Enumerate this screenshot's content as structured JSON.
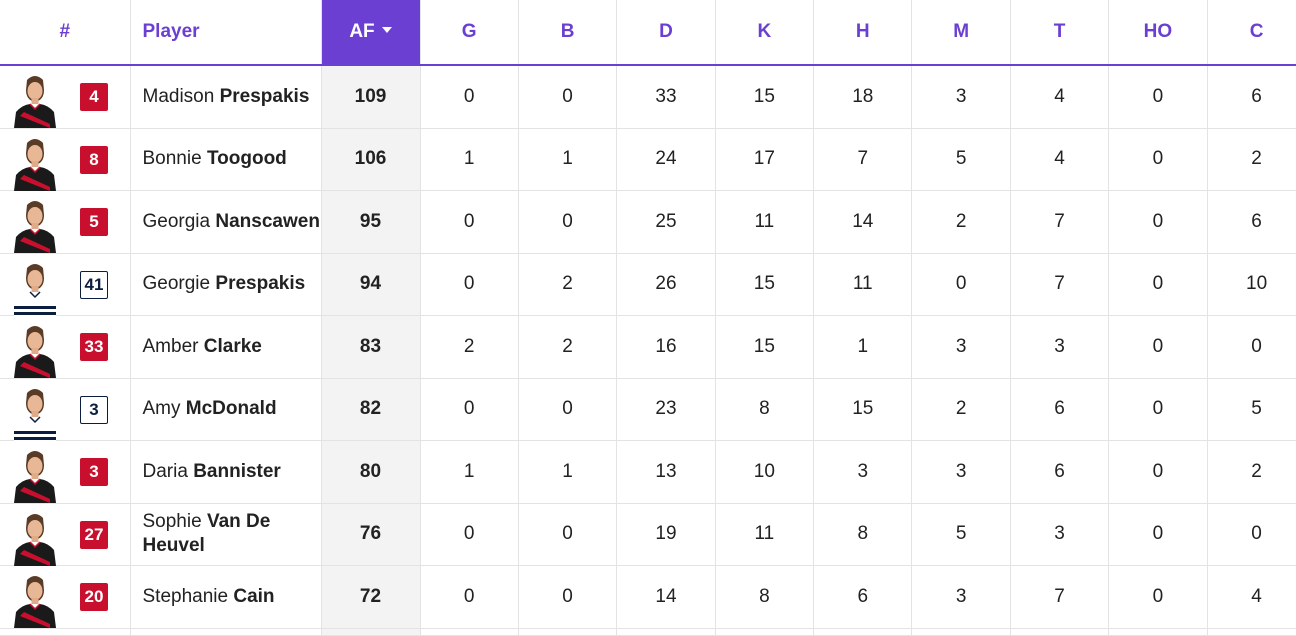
{
  "table": {
    "headers": {
      "num": "#",
      "player": "Player",
      "af": "AF",
      "stats": [
        "G",
        "B",
        "D",
        "K",
        "H",
        "M",
        "T",
        "HO",
        "C"
      ]
    },
    "sort": {
      "column": "AF",
      "direction": "descending"
    },
    "colors": {
      "accent": "#6b3fd2",
      "essendon_red": "#c8102e",
      "geelong_navy": "#0b1e3f"
    },
    "rows": [
      {
        "number": "4",
        "team": "essendon",
        "first": "Madison",
        "last": "Prespakis",
        "af": "109",
        "stats": [
          "0",
          "0",
          "33",
          "15",
          "18",
          "3",
          "4",
          "0",
          "6"
        ]
      },
      {
        "number": "8",
        "team": "essendon",
        "first": "Bonnie",
        "last": "Toogood",
        "af": "106",
        "stats": [
          "1",
          "1",
          "24",
          "17",
          "7",
          "5",
          "4",
          "0",
          "2"
        ]
      },
      {
        "number": "5",
        "team": "essendon",
        "first": "Georgia",
        "last": "Nanscawen",
        "af": "95",
        "stats": [
          "0",
          "0",
          "25",
          "11",
          "14",
          "2",
          "7",
          "0",
          "6"
        ]
      },
      {
        "number": "41",
        "team": "geelong",
        "first": "Georgie",
        "last": "Prespakis",
        "af": "94",
        "stats": [
          "0",
          "2",
          "26",
          "15",
          "11",
          "0",
          "7",
          "0",
          "10"
        ]
      },
      {
        "number": "33",
        "team": "essendon",
        "first": "Amber",
        "last": "Clarke",
        "af": "83",
        "stats": [
          "2",
          "2",
          "16",
          "15",
          "1",
          "3",
          "3",
          "0",
          "0"
        ]
      },
      {
        "number": "3",
        "team": "geelong",
        "first": "Amy",
        "last": "McDonald",
        "af": "82",
        "stats": [
          "0",
          "0",
          "23",
          "8",
          "15",
          "2",
          "6",
          "0",
          "5"
        ]
      },
      {
        "number": "3",
        "team": "essendon",
        "first": "Daria",
        "last": "Bannister",
        "af": "80",
        "stats": [
          "1",
          "1",
          "13",
          "10",
          "3",
          "3",
          "6",
          "0",
          "2"
        ]
      },
      {
        "number": "27",
        "team": "essendon",
        "first": "Sophie",
        "last": "Van De Heuvel",
        "af": "76",
        "stats": [
          "0",
          "0",
          "19",
          "11",
          "8",
          "5",
          "3",
          "0",
          "0"
        ]
      },
      {
        "number": "20",
        "team": "essendon",
        "first": "Stephanie",
        "last": "Cain",
        "af": "72",
        "stats": [
          "0",
          "0",
          "14",
          "8",
          "6",
          "3",
          "7",
          "0",
          "4"
        ]
      }
    ]
  }
}
